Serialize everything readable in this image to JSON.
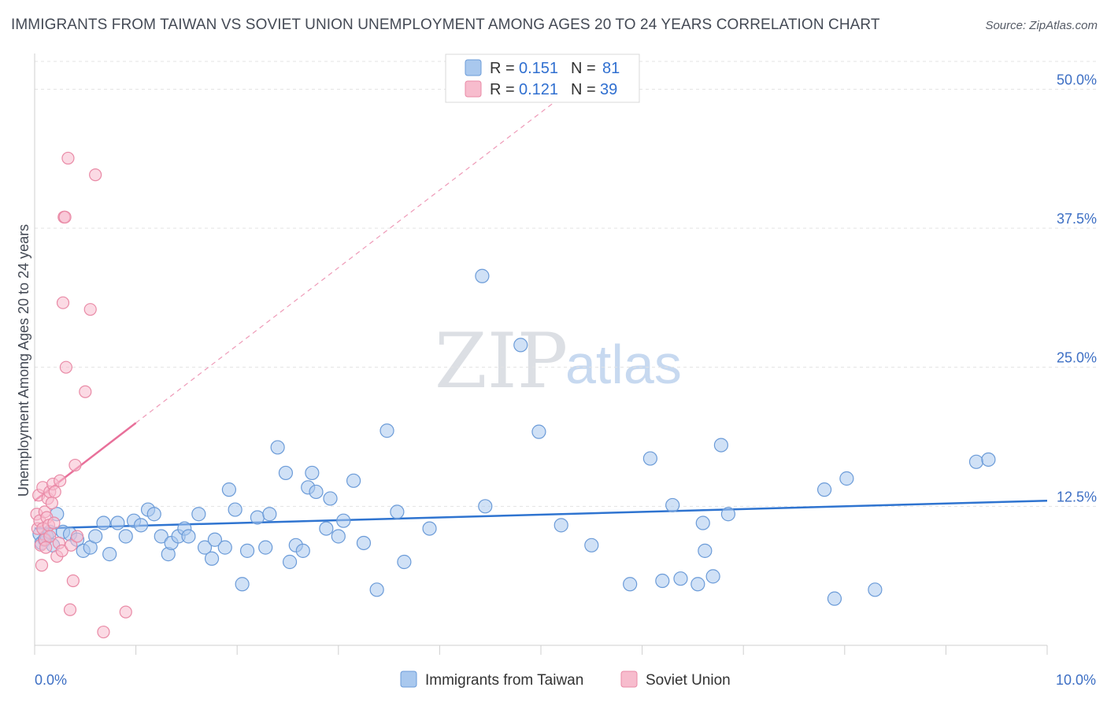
{
  "title": "IMMIGRANTS FROM TAIWAN VS SOVIET UNION UNEMPLOYMENT AMONG AGES 20 TO 24 YEARS CORRELATION CHART",
  "source": "Source: ZipAtlas.com",
  "watermark": {
    "zip": "ZIP",
    "atlas": "atlas"
  },
  "colors": {
    "taiwan_fill": "#a9c8ee",
    "taiwan_stroke": "#6b9bd8",
    "taiwan_line": "#2f74d0",
    "soviet_fill": "#f7bccd",
    "soviet_stroke": "#e98aa6",
    "soviet_line": "#e8709a",
    "grid": "#e3e3e3",
    "axis_text": "#3d6fc4"
  },
  "legend": {
    "rows": [
      {
        "r_label": "R =",
        "r_value": "0.151",
        "n_label": "N =",
        "n_value": "81"
      },
      {
        "r_label": "R =",
        "r_value": "0.121",
        "n_label": "N =",
        "n_value": "39"
      }
    ]
  },
  "chart_data": {
    "type": "scatter",
    "title": "IMMIGRANTS FROM TAIWAN VS SOVIET UNION UNEMPLOYMENT AMONG AGES 20 TO 24 YEARS CORRELATION CHART",
    "xlabel": "",
    "ylabel": "Unemployment Among Ages 20 to 24 years",
    "xlim": [
      0,
      10
    ],
    "ylim": [
      0,
      52.5
    ],
    "x_tick_labels": [
      {
        "value": 0,
        "label": "0.0%"
      },
      {
        "value": 10,
        "label": "10.0%"
      }
    ],
    "y_tick_labels": [
      {
        "value": 12.5,
        "label": "12.5%"
      },
      {
        "value": 25,
        "label": "25.0%"
      },
      {
        "value": 37.5,
        "label": "37.5%"
      },
      {
        "value": 50,
        "label": "50.0%"
      }
    ],
    "series": [
      {
        "name": "Immigrants from Taiwan",
        "R": 0.151,
        "N": 81,
        "trend": {
          "x": [
            0,
            10
          ],
          "y": [
            10.5,
            13.0
          ]
        },
        "points": [
          [
            0.05,
            10.0
          ],
          [
            0.07,
            9.2
          ],
          [
            0.1,
            9.5
          ],
          [
            0.12,
            9.8
          ],
          [
            0.15,
            10.2
          ],
          [
            0.18,
            9.0
          ],
          [
            0.22,
            11.8
          ],
          [
            0.28,
            10.2
          ],
          [
            0.35,
            10.0
          ],
          [
            0.42,
            9.5
          ],
          [
            0.48,
            8.5
          ],
          [
            0.55,
            8.8
          ],
          [
            0.6,
            9.8
          ],
          [
            0.68,
            11.0
          ],
          [
            0.74,
            8.2
          ],
          [
            0.82,
            11.0
          ],
          [
            0.9,
            9.8
          ],
          [
            0.98,
            11.2
          ],
          [
            1.05,
            10.8
          ],
          [
            1.12,
            12.2
          ],
          [
            1.18,
            11.8
          ],
          [
            1.25,
            9.8
          ],
          [
            1.32,
            8.2
          ],
          [
            1.35,
            9.2
          ],
          [
            1.42,
            9.8
          ],
          [
            1.48,
            10.5
          ],
          [
            1.52,
            9.8
          ],
          [
            1.62,
            11.8
          ],
          [
            1.68,
            8.8
          ],
          [
            1.75,
            7.8
          ],
          [
            1.78,
            9.5
          ],
          [
            1.88,
            8.8
          ],
          [
            1.92,
            14.0
          ],
          [
            1.98,
            12.2
          ],
          [
            2.05,
            5.5
          ],
          [
            2.1,
            8.5
          ],
          [
            2.2,
            11.5
          ],
          [
            2.28,
            8.8
          ],
          [
            2.32,
            11.8
          ],
          [
            2.4,
            17.8
          ],
          [
            2.48,
            15.5
          ],
          [
            2.52,
            7.5
          ],
          [
            2.58,
            9.0
          ],
          [
            2.65,
            8.5
          ],
          [
            2.7,
            14.2
          ],
          [
            2.74,
            15.5
          ],
          [
            2.78,
            13.8
          ],
          [
            2.88,
            10.5
          ],
          [
            2.92,
            13.2
          ],
          [
            3.0,
            9.8
          ],
          [
            3.05,
            11.2
          ],
          [
            3.15,
            14.8
          ],
          [
            3.25,
            9.2
          ],
          [
            3.38,
            5.0
          ],
          [
            3.48,
            19.3
          ],
          [
            3.58,
            12.0
          ],
          [
            3.65,
            7.5
          ],
          [
            3.9,
            10.5
          ],
          [
            4.42,
            33.2
          ],
          [
            4.45,
            12.5
          ],
          [
            4.8,
            27.0
          ],
          [
            4.98,
            19.2
          ],
          [
            5.2,
            10.8
          ],
          [
            5.5,
            9.0
          ],
          [
            5.88,
            5.5
          ],
          [
            6.08,
            16.8
          ],
          [
            6.2,
            5.8
          ],
          [
            6.3,
            12.6
          ],
          [
            6.38,
            6.0
          ],
          [
            6.55,
            5.5
          ],
          [
            6.6,
            11.0
          ],
          [
            6.62,
            8.5
          ],
          [
            6.7,
            6.2
          ],
          [
            6.78,
            18.0
          ],
          [
            6.85,
            11.8
          ],
          [
            7.8,
            14.0
          ],
          [
            7.9,
            4.2
          ],
          [
            8.02,
            15.0
          ],
          [
            8.3,
            5.0
          ],
          [
            9.3,
            16.5
          ],
          [
            9.42,
            16.7
          ]
        ]
      },
      {
        "name": "Soviet Union",
        "R": 0.121,
        "N": 39,
        "trend": {
          "x": [
            0,
            1.0
          ],
          "y": [
            13.0,
            20.0
          ]
        },
        "trend_extended": {
          "x": [
            1.0,
            5.3
          ],
          "y": [
            20.0,
            50.0
          ]
        },
        "points": [
          [
            0.02,
            11.8
          ],
          [
            0.03,
            10.5
          ],
          [
            0.04,
            13.5
          ],
          [
            0.05,
            11.2
          ],
          [
            0.06,
            9.0
          ],
          [
            0.07,
            7.2
          ],
          [
            0.08,
            14.2
          ],
          [
            0.08,
            10.5
          ],
          [
            0.1,
            9.5
          ],
          [
            0.1,
            12.0
          ],
          [
            0.11,
            8.8
          ],
          [
            0.12,
            11.5
          ],
          [
            0.13,
            13.2
          ],
          [
            0.14,
            10.8
          ],
          [
            0.15,
            13.8
          ],
          [
            0.15,
            9.8
          ],
          [
            0.17,
            12.8
          ],
          [
            0.18,
            14.5
          ],
          [
            0.19,
            11.0
          ],
          [
            0.2,
            13.8
          ],
          [
            0.22,
            8.0
          ],
          [
            0.24,
            9.2
          ],
          [
            0.25,
            14.8
          ],
          [
            0.27,
            8.5
          ],
          [
            0.28,
            30.8
          ],
          [
            0.29,
            38.5
          ],
          [
            0.3,
            38.5
          ],
          [
            0.31,
            25.0
          ],
          [
            0.33,
            43.8
          ],
          [
            0.35,
            3.2
          ],
          [
            0.36,
            9.0
          ],
          [
            0.38,
            5.8
          ],
          [
            0.4,
            16.2
          ],
          [
            0.42,
            9.8
          ],
          [
            0.5,
            22.8
          ],
          [
            0.55,
            30.2
          ],
          [
            0.6,
            42.3
          ],
          [
            0.68,
            1.2
          ],
          [
            0.9,
            3.0
          ]
        ]
      }
    ]
  },
  "bottom_legend": [
    "Immigrants from Taiwan",
    "Soviet Union"
  ]
}
